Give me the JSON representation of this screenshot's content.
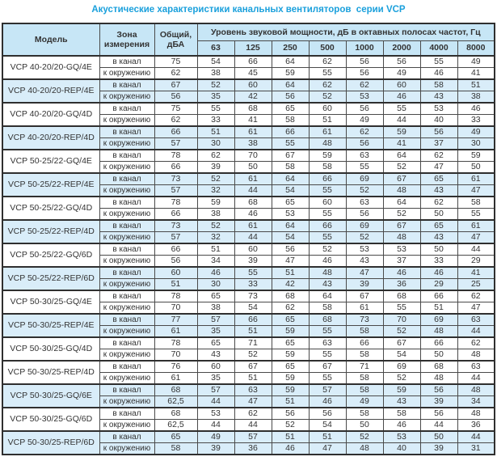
{
  "title": "Акустические характеристики канальных вентиляторов  серии VCP",
  "colors": {
    "accent_blue": "#1aa0dc",
    "header_bg": "#c7e6f6",
    "row_shaded_bg": "#d9edf9"
  },
  "table": {
    "headers": {
      "model": "Модель",
      "zone": "Зона измерения",
      "total": "Общий, дБА",
      "band_group": "Уровень звуковой мощности, дБ в октавных полосах частот, Гц",
      "frequencies": [
        "63",
        "125",
        "250",
        "500",
        "1000",
        "2000",
        "4000",
        "8000"
      ]
    },
    "zone_labels": {
      "duct": "в канал",
      "ambient": "к окружению"
    },
    "rows": [
      {
        "model": "VCP 40-20/20-GQ/4E",
        "shaded": false,
        "duct": {
          "total": "75",
          "bands": [
            "54",
            "66",
            "64",
            "62",
            "56",
            "56",
            "55",
            "49"
          ]
        },
        "ambient": {
          "total": "62",
          "bands": [
            "38",
            "45",
            "59",
            "55",
            "56",
            "49",
            "46",
            "41"
          ]
        }
      },
      {
        "model": "VCP 40-20/20-REP/4E",
        "shaded": true,
        "duct": {
          "total": "67",
          "bands": [
            "52",
            "60",
            "64",
            "62",
            "62",
            "60",
            "58",
            "51"
          ]
        },
        "ambient": {
          "total": "56",
          "bands": [
            "35",
            "42",
            "56",
            "52",
            "53",
            "46",
            "43",
            "38"
          ]
        }
      },
      {
        "model": "VCP 40-20/20-GQ/4D",
        "shaded": false,
        "duct": {
          "total": "75",
          "bands": [
            "55",
            "68",
            "65",
            "60",
            "56",
            "55",
            "53",
            "46"
          ]
        },
        "ambient": {
          "total": "62",
          "bands": [
            "33",
            "41",
            "58",
            "51",
            "49",
            "44",
            "40",
            "33"
          ]
        }
      },
      {
        "model": "VCP 40-20/20-REP/4D",
        "shaded": true,
        "duct": {
          "total": "66",
          "bands": [
            "51",
            "61",
            "66",
            "61",
            "62",
            "59",
            "56",
            "49"
          ]
        },
        "ambient": {
          "total": "57",
          "bands": [
            "30",
            "38",
            "55",
            "48",
            "56",
            "41",
            "37",
            "30"
          ]
        }
      },
      {
        "model": "VCP 50-25/22-GQ/4E",
        "shaded": false,
        "duct": {
          "total": "78",
          "bands": [
            "62",
            "70",
            "67",
            "59",
            "63",
            "64",
            "62",
            "59"
          ]
        },
        "ambient": {
          "total": "66",
          "bands": [
            "39",
            "50",
            "58",
            "58",
            "55",
            "52",
            "47",
            "50"
          ]
        }
      },
      {
        "model": "VCP 50-25/22-REP/4E",
        "shaded": true,
        "duct": {
          "total": "73",
          "bands": [
            "52",
            "61",
            "64",
            "66",
            "69",
            "67",
            "65",
            "61"
          ]
        },
        "ambient": {
          "total": "57",
          "bands": [
            "32",
            "44",
            "54",
            "55",
            "52",
            "48",
            "43",
            "47"
          ]
        }
      },
      {
        "model": "VCP 50-25/22-GQ/4D",
        "shaded": false,
        "duct": {
          "total": "78",
          "bands": [
            "59",
            "68",
            "65",
            "60",
            "63",
            "64",
            "62",
            "58"
          ]
        },
        "ambient": {
          "total": "66",
          "bands": [
            "38",
            "46",
            "53",
            "55",
            "56",
            "52",
            "50",
            "55"
          ]
        }
      },
      {
        "model": "VCP 50-25/22-REP/4D",
        "shaded": true,
        "duct": {
          "total": "73",
          "bands": [
            "52",
            "61",
            "64",
            "66",
            "69",
            "67",
            "65",
            "61"
          ]
        },
        "ambient": {
          "total": "57",
          "bands": [
            "32",
            "44",
            "54",
            "55",
            "52",
            "48",
            "43",
            "47"
          ]
        }
      },
      {
        "model": "VCP 50-25/22-GQ/6D",
        "shaded": false,
        "duct": {
          "total": "66",
          "bands": [
            "51",
            "60",
            "56",
            "52",
            "53",
            "53",
            "50",
            "44"
          ]
        },
        "ambient": {
          "total": "56",
          "bands": [
            "34",
            "39",
            "47",
            "46",
            "43",
            "37",
            "33",
            "29"
          ]
        }
      },
      {
        "model": "VCP 50-25/22-REP/6D",
        "shaded": true,
        "duct": {
          "total": "60",
          "bands": [
            "46",
            "55",
            "51",
            "48",
            "47",
            "46",
            "46",
            "41"
          ]
        },
        "ambient": {
          "total": "51",
          "bands": [
            "30",
            "33",
            "42",
            "43",
            "39",
            "36",
            "29",
            "25"
          ]
        }
      },
      {
        "model": "VCP 50-30/25-GQ/4E",
        "shaded": false,
        "duct": {
          "total": "78",
          "bands": [
            "65",
            "73",
            "68",
            "64",
            "67",
            "68",
            "66",
            "62"
          ]
        },
        "ambient": {
          "total": "70",
          "bands": [
            "38",
            "54",
            "62",
            "58",
            "61",
            "55",
            "51",
            "47"
          ]
        }
      },
      {
        "model": "VCP 50-30/25-REP/4E",
        "shaded": true,
        "duct": {
          "total": "77",
          "bands": [
            "57",
            "66",
            "65",
            "68",
            "73",
            "70",
            "69",
            "63"
          ]
        },
        "ambient": {
          "total": "61",
          "bands": [
            "35",
            "51",
            "59",
            "55",
            "58",
            "52",
            "48",
            "44"
          ]
        }
      },
      {
        "model": "VCP 50-30/25-GQ/4D",
        "shaded": false,
        "duct": {
          "total": "78",
          "bands": [
            "65",
            "71",
            "65",
            "63",
            "66",
            "67",
            "66",
            "62"
          ]
        },
        "ambient": {
          "total": "70",
          "bands": [
            "43",
            "52",
            "59",
            "55",
            "58",
            "54",
            "50",
            "48"
          ]
        }
      },
      {
        "model": "VCP 50-30/25-REP/4D",
        "shaded": false,
        "duct": {
          "total": "76",
          "bands": [
            "60",
            "67",
            "65",
            "67",
            "71",
            "69",
            "68",
            "63"
          ]
        },
        "ambient": {
          "total": "61",
          "bands": [
            "35",
            "51",
            "59",
            "55",
            "58",
            "52",
            "48",
            "44"
          ]
        }
      },
      {
        "model": "VCP 50-30/25-GQ/6E",
        "shaded": true,
        "duct": {
          "total": "68",
          "bands": [
            "57",
            "63",
            "59",
            "57",
            "58",
            "59",
            "56",
            "48"
          ]
        },
        "ambient": {
          "total": "62,5",
          "bands": [
            "44",
            "47",
            "51",
            "46",
            "49",
            "43",
            "39",
            "34"
          ]
        }
      },
      {
        "model": "VCP 50-30/25-GQ/6D",
        "shaded": false,
        "duct": {
          "total": "68",
          "bands": [
            "53",
            "62",
            "56",
            "56",
            "58",
            "58",
            "56",
            "48"
          ]
        },
        "ambient": {
          "total": "62,5",
          "bands": [
            "44",
            "44",
            "52",
            "54",
            "50",
            "46",
            "44",
            "36"
          ]
        }
      },
      {
        "model": "VCP 50-30/25-REP/6D",
        "shaded": true,
        "duct": {
          "total": "65",
          "bands": [
            "49",
            "57",
            "51",
            "51",
            "52",
            "53",
            "50",
            "44"
          ]
        },
        "ambient": {
          "total": "58",
          "bands": [
            "39",
            "36",
            "46",
            "47",
            "48",
            "40",
            "39",
            "31"
          ]
        }
      }
    ]
  }
}
